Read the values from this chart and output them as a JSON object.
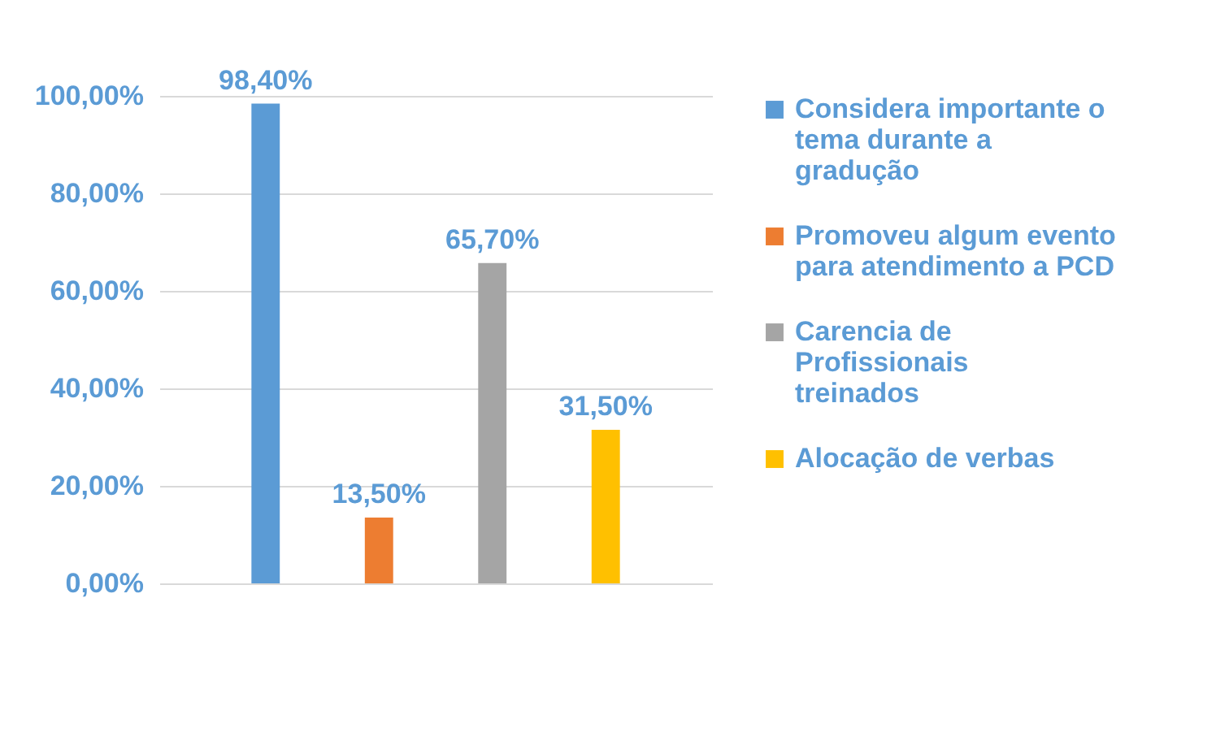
{
  "chart_data": {
    "type": "bar",
    "categories": [
      null
    ],
    "series": [
      {
        "name": "Considera importante o tema durante a gradução",
        "color": "#5b9bd5",
        "values": [
          98.4
        ],
        "value_labels": [
          "98,40%"
        ]
      },
      {
        "name": "Promoveu algum evento para atendimento a PCD",
        "color": "#ed7d31",
        "values": [
          13.5
        ],
        "value_labels": [
          "13,50%"
        ]
      },
      {
        "name": "Carencia de Profissionais treinados",
        "color": "#a5a5a5",
        "values": [
          65.7
        ],
        "value_labels": [
          "65,70%"
        ]
      },
      {
        "name": "Alocação de verbas",
        "color": "#ffc000",
        "values": [
          31.5
        ],
        "value_labels": [
          "31,50%"
        ]
      }
    ],
    "ylim": [
      0,
      100
    ],
    "yticks": [
      {
        "value": 0,
        "label": "0,00%"
      },
      {
        "value": 20,
        "label": "20,00%"
      },
      {
        "value": 40,
        "label": "40,00%"
      },
      {
        "value": 60,
        "label": "60,00%"
      },
      {
        "value": 80,
        "label": "80,00%"
      },
      {
        "value": 100,
        "label": "100,00%"
      }
    ],
    "grid": "y",
    "legend": "right",
    "tick_labels": "y"
  }
}
